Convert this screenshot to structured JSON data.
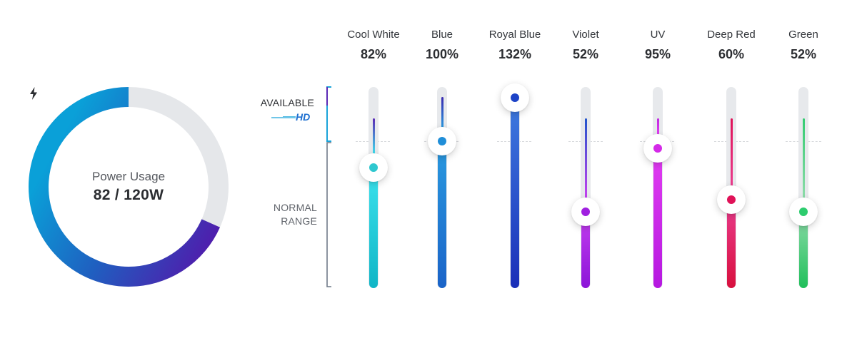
{
  "gauge": {
    "label": "Power Usage",
    "value_text": "82 / 120W",
    "used": 82,
    "max": 120,
    "icon": "lightning-bolt-icon",
    "colors": {
      "start": "#5a0ea8",
      "mid": "#1f5fc0",
      "end": "#0aa0d8",
      "track": "#e5e7ea"
    }
  },
  "legend": {
    "available_label": "AVAILABLE",
    "hd_logo": "HD",
    "normal_label_line1": "NORMAL",
    "normal_label_line2": "RANGE",
    "available_color": "#1aa3d9",
    "normal_color": "#6f7a88"
  },
  "scale": {
    "normal_max_percent": 100,
    "available_max_percent": 140
  },
  "channels": [
    {
      "name": "Cool White",
      "percent_text": "82%",
      "percent": 82,
      "color_top": "#3de3ee",
      "color_bottom": "#10b5c6",
      "knob_color": "#2ec7cf",
      "thin_color": "#5b2ab5"
    },
    {
      "name": "Blue",
      "percent_text": "100%",
      "percent": 100,
      "color_top": "#2a9be0",
      "color_bottom": "#1a63c8",
      "knob_color": "#1f8ed8",
      "thin_color": "#3a2ab0"
    },
    {
      "name": "Royal Blue",
      "percent_text": "132%",
      "percent": 132,
      "color_top": "#3f7ce0",
      "color_bottom": "#1a2fb8",
      "knob_color": "#1d43c7",
      "thin_color": "#1d43c7"
    },
    {
      "name": "Violet",
      "percent_text": "52%",
      "percent": 52,
      "color_top": "#c640f0",
      "color_bottom": "#8b14d8",
      "knob_color": "#a020e0",
      "thin_color": "#2255cc"
    },
    {
      "name": "UV",
      "percent_text": "95%",
      "percent": 95,
      "color_top": "#e33ef2",
      "color_bottom": "#b518e0",
      "knob_color": "#d42ae8",
      "thin_color": "#c02ae0"
    },
    {
      "name": "Deep Red",
      "percent_text": "60%",
      "percent": 60,
      "color_top": "#ea3d8e",
      "color_bottom": "#d8103e",
      "knob_color": "#e01258",
      "thin_color": "#e01258"
    },
    {
      "name": "Green",
      "percent_text": "52%",
      "percent": 52,
      "color_top": "#8fdcaa",
      "color_bottom": "#1fbf5a",
      "knob_color": "#2dcc6e",
      "thin_color": "#35cc72"
    }
  ]
}
